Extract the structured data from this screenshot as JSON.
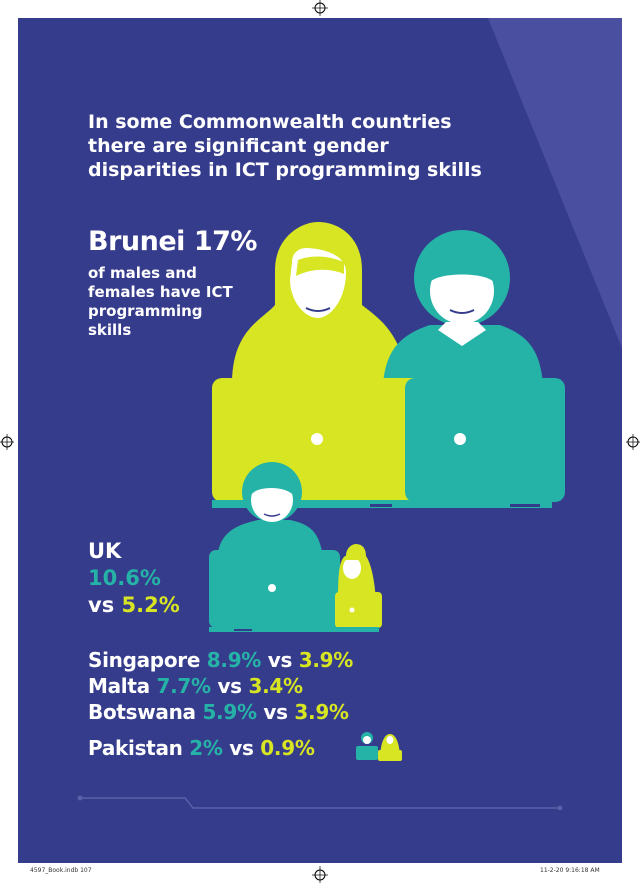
{
  "headline": {
    "line1": "In some Commonwealth countries",
    "line2": "there are significant gender",
    "line3": "disparities in ICT programming skills"
  },
  "brunei": {
    "country": "Brunei",
    "percent": "17%",
    "desc_line1": "of males and",
    "desc_line2": "females have ICT",
    "desc_line3": "programming",
    "desc_line4": "skills"
  },
  "uk": {
    "country": "UK",
    "male": "10.6%",
    "vs": "vs",
    "female": "5.2%"
  },
  "stats": [
    {
      "country": "Singapore",
      "male": "8.9%",
      "vs": "vs",
      "female": "3.9%"
    },
    {
      "country": "Malta",
      "male": "7.7%",
      "vs": "vs",
      "female": "3.4%"
    },
    {
      "country": "Botswana",
      "male": "5.9%",
      "vs": "vs",
      "female": "3.9%"
    },
    {
      "country": "Pakistan",
      "male": "2%",
      "vs": "vs",
      "female": "0.9%"
    }
  ],
  "slug": {
    "left": "4597_Book.indb   107",
    "right": "11-2-20   9:16:18 AM"
  },
  "colors": {
    "background": "#363c8c",
    "lime": "#d7e522",
    "teal": "#26b3a7",
    "white": "#ffffff"
  }
}
